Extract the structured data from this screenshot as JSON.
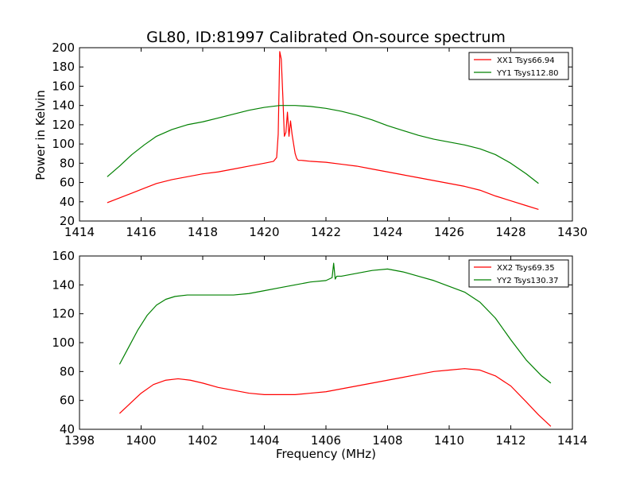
{
  "figure": {
    "title": "GL80, ID:81997 Calibrated On-source spectrum",
    "xlabel": "Frequency (MHz)",
    "ylabel": "Power in Kelvin"
  },
  "chart_data": [
    {
      "type": "line",
      "xlim": [
        1414,
        1430
      ],
      "ylim": [
        20,
        200
      ],
      "xticks": [
        1414,
        1416,
        1418,
        1420,
        1422,
        1424,
        1426,
        1428,
        1430
      ],
      "yticks": [
        20,
        40,
        60,
        80,
        100,
        120,
        140,
        160,
        180,
        200
      ],
      "legend_position": "top-right",
      "series": [
        {
          "name": "XX1 Tsys66.94",
          "color": "#ff0000",
          "x": [
            1414.9,
            1415.3,
            1415.7,
            1416.1,
            1416.5,
            1417.0,
            1417.5,
            1418.0,
            1418.5,
            1419.0,
            1419.5,
            1420.0,
            1420.3,
            1420.4,
            1420.45,
            1420.5,
            1420.55,
            1420.6,
            1420.65,
            1420.7,
            1420.75,
            1420.8,
            1420.85,
            1420.9,
            1420.95,
            1421.0,
            1421.05,
            1421.1,
            1421.2,
            1421.5,
            1422.0,
            1422.5,
            1423.0,
            1423.5,
            1424.0,
            1424.5,
            1425.0,
            1425.5,
            1426.0,
            1426.5,
            1427.0,
            1427.5,
            1428.0,
            1428.5,
            1428.9
          ],
          "y": [
            39,
            44,
            49,
            54,
            59,
            63,
            66,
            69,
            71,
            74,
            77,
            80,
            82,
            86,
            110,
            196,
            188,
            150,
            108,
            112,
            133,
            108,
            124,
            110,
            100,
            90,
            85,
            83,
            83,
            82,
            81,
            79,
            77,
            74,
            71,
            68,
            65,
            62,
            59,
            56,
            52,
            46,
            41,
            36,
            32
          ]
        },
        {
          "name": "YY1 Tsys112.80",
          "color": "#008000",
          "x": [
            1414.9,
            1415.3,
            1415.7,
            1416.1,
            1416.5,
            1417.0,
            1417.5,
            1418.0,
            1418.5,
            1419.0,
            1419.5,
            1420.0,
            1420.5,
            1421.0,
            1421.5,
            1422.0,
            1422.5,
            1423.0,
            1423.5,
            1424.0,
            1424.5,
            1425.0,
            1425.5,
            1426.0,
            1426.5,
            1427.0,
            1427.5,
            1428.0,
            1428.5,
            1428.9
          ],
          "y": [
            66,
            77,
            89,
            99,
            108,
            115,
            120,
            123,
            127,
            131,
            135,
            138,
            140,
            140,
            139,
            137,
            134,
            130,
            125,
            119,
            114,
            109,
            105,
            102,
            99,
            95,
            89,
            80,
            69,
            59
          ]
        }
      ]
    },
    {
      "type": "line",
      "xlim": [
        1398,
        1414
      ],
      "ylim": [
        40,
        160
      ],
      "xticks": [
        1398,
        1400,
        1402,
        1404,
        1406,
        1408,
        1410,
        1412,
        1414
      ],
      "yticks": [
        40,
        60,
        80,
        100,
        120,
        140,
        160
      ],
      "legend_position": "top-right",
      "series": [
        {
          "name": "XX2 Tsys69.35",
          "color": "#ff0000",
          "x": [
            1399.3,
            1399.7,
            1400.0,
            1400.4,
            1400.8,
            1401.2,
            1401.6,
            1402.0,
            1402.5,
            1403.0,
            1403.5,
            1404.0,
            1404.5,
            1405.0,
            1405.5,
            1406.0,
            1406.5,
            1407.0,
            1407.5,
            1408.0,
            1408.5,
            1409.0,
            1409.5,
            1410.0,
            1410.5,
            1411.0,
            1411.5,
            1412.0,
            1412.5,
            1412.9,
            1413.3
          ],
          "y": [
            51,
            59,
            65,
            71,
            74,
            75,
            74,
            72,
            69,
            67,
            65,
            64,
            64,
            64,
            65,
            66,
            68,
            70,
            72,
            74,
            76,
            78,
            80,
            81,
            82,
            81,
            77,
            70,
            59,
            50,
            42
          ]
        },
        {
          "name": "YY2 Tsys130.37",
          "color": "#008000",
          "x": [
            1399.3,
            1399.6,
            1399.9,
            1400.2,
            1400.5,
            1400.8,
            1401.1,
            1401.5,
            1402.0,
            1402.5,
            1403.0,
            1403.5,
            1404.0,
            1404.5,
            1405.0,
            1405.5,
            1406.0,
            1406.2,
            1406.25,
            1406.3,
            1406.35,
            1406.5,
            1407.0,
            1407.5,
            1408.0,
            1408.5,
            1409.0,
            1409.5,
            1410.0,
            1410.5,
            1411.0,
            1411.5,
            1412.0,
            1412.5,
            1413.0,
            1413.3
          ],
          "y": [
            85,
            97,
            109,
            119,
            126,
            130,
            132,
            133,
            133,
            133,
            133,
            134,
            136,
            138,
            140,
            142,
            143,
            145,
            155,
            144,
            146,
            146,
            148,
            150,
            151,
            149,
            146,
            143,
            139,
            135,
            128,
            117,
            102,
            88,
            77,
            72
          ]
        }
      ]
    }
  ]
}
